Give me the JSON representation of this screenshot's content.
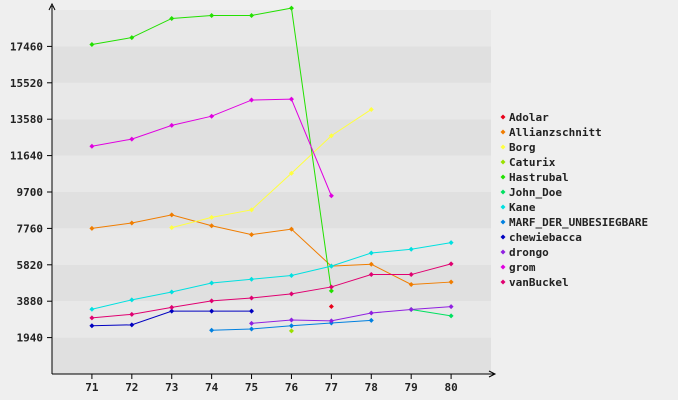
{
  "chart_data": {
    "type": "line",
    "x": [
      71,
      72,
      73,
      74,
      75,
      76,
      77,
      78,
      79,
      80
    ],
    "x_tick_labels": [
      "71",
      "72",
      "73",
      "74",
      "75",
      "76",
      "77",
      "78",
      "79",
      "80"
    ],
    "y_tick_labels": [
      "1940",
      "3880",
      "5820",
      "7760",
      "9700",
      "11640",
      "13580",
      "15520",
      "17460"
    ],
    "y_ticks": [
      1940,
      3880,
      5820,
      7760,
      9700,
      11640,
      13580,
      15520,
      17460
    ],
    "ylim": [
      0,
      19400
    ],
    "xlim": [
      70,
      81
    ],
    "grid": "horizontal bands",
    "legend_position": "right",
    "series": [
      {
        "name": "Adolar",
        "color": "#e8001a",
        "values": [
          null,
          null,
          null,
          null,
          null,
          null,
          3600,
          null,
          null,
          null
        ]
      },
      {
        "name": "Allianzschnitt",
        "color": "#f07d00",
        "values": [
          7760,
          8050,
          8480,
          7900,
          7430,
          7720,
          5750,
          5850,
          4770,
          4900
        ]
      },
      {
        "name": "Borg",
        "color": "#ffff40",
        "values": [
          null,
          null,
          7800,
          8350,
          8750,
          10700,
          12700,
          14100,
          null,
          null
        ]
      },
      {
        "name": "Caturix",
        "color": "#9ae000",
        "values": [
          null,
          null,
          null,
          null,
          null,
          2300,
          null,
          null,
          null,
          null
        ]
      },
      {
        "name": "Hastrubal",
        "color": "#22e000",
        "values": [
          17560,
          17930,
          18950,
          19110,
          19110,
          19500,
          4430,
          null,
          null,
          null
        ]
      },
      {
        "name": "John_Doe",
        "color": "#00e060",
        "values": [
          null,
          null,
          null,
          null,
          null,
          null,
          null,
          null,
          3440,
          3100
        ]
      },
      {
        "name": "Kane",
        "color": "#00e0e0",
        "values": [
          3450,
          3950,
          4370,
          4850,
          5050,
          5250,
          5750,
          6450,
          6650,
          7000
        ]
      },
      {
        "name": "MARF_DER_UNBESIEGBARE",
        "color": "#0080e0",
        "values": [
          null,
          null,
          null,
          2330,
          2400,
          2570,
          2720,
          2860,
          null,
          null
        ]
      },
      {
        "name": "chewiebacca",
        "color": "#0000c0",
        "values": [
          2570,
          2620,
          3350,
          3350,
          3350,
          null,
          null,
          null,
          null,
          null
        ]
      },
      {
        "name": "drongo",
        "color": "#9020e0",
        "values": [
          null,
          null,
          null,
          null,
          2700,
          2880,
          2830,
          3250,
          3440,
          3590
        ]
      },
      {
        "name": "grom",
        "color": "#e000e0",
        "values": [
          12140,
          12520,
          13250,
          13740,
          14600,
          14650,
          9500,
          null,
          null,
          null
        ]
      },
      {
        "name": "vanBuckel",
        "color": "#e00070",
        "values": [
          2990,
          3180,
          3550,
          3900,
          4050,
          4270,
          4640,
          5300,
          5300,
          5870
        ]
      }
    ]
  }
}
